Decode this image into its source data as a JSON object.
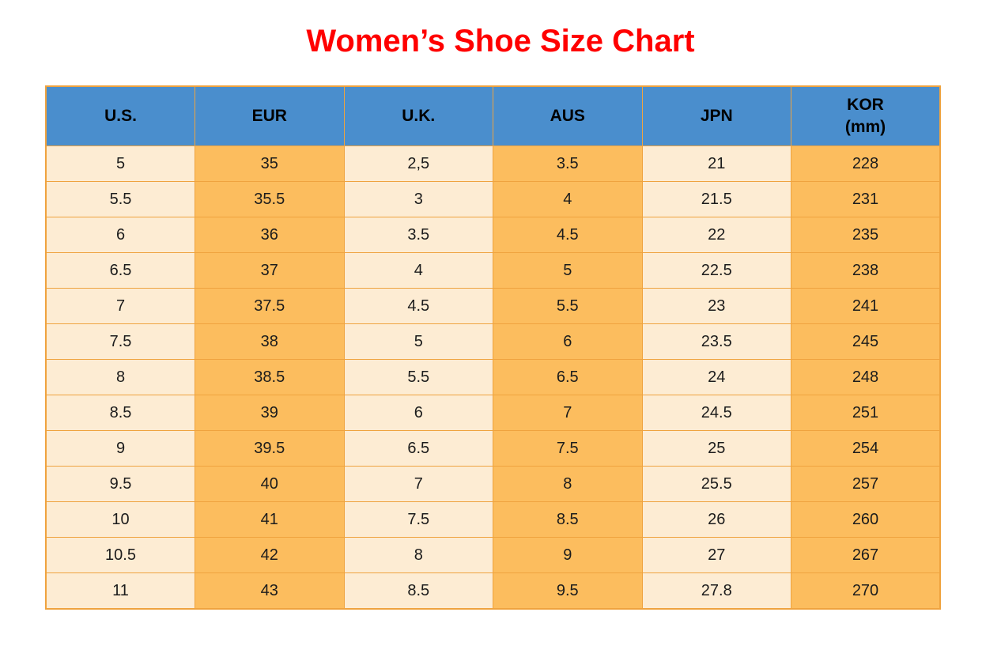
{
  "page": {
    "title": "Women’s Shoe Size Chart"
  },
  "colors": {
    "title_text": "#ff0000",
    "header_bg": "#4a8ecd",
    "header_text": "#000000",
    "cell_text": "#1c1c1c",
    "stripe_cream": "#fdecd3",
    "stripe_orange": "#fcbd5e",
    "grid_border": "#efa33f"
  },
  "chart_data": {
    "type": "table",
    "title": "Women’s Shoe Size Chart",
    "columns": [
      "U.S.",
      "EUR",
      "U.K.",
      "AUS",
      "JPN",
      "KOR\n(mm)"
    ],
    "column_fills": [
      "cream",
      "orange",
      "cream",
      "orange",
      "cream",
      "orange"
    ],
    "rows": [
      [
        "5",
        "35",
        "2,5",
        "3.5",
        "21",
        "228"
      ],
      [
        "5.5",
        "35.5",
        "3",
        "4",
        "21.5",
        "231"
      ],
      [
        "6",
        "36",
        "3.5",
        "4.5",
        "22",
        "235"
      ],
      [
        "6.5",
        "37",
        "4",
        "5",
        "22.5",
        "238"
      ],
      [
        "7",
        "37.5",
        "4.5",
        "5.5",
        "23",
        "241"
      ],
      [
        "7.5",
        "38",
        "5",
        "6",
        "23.5",
        "245"
      ],
      [
        "8",
        "38.5",
        "5.5",
        "6.5",
        "24",
        "248"
      ],
      [
        "8.5",
        "39",
        "6",
        "7",
        "24.5",
        "251"
      ],
      [
        "9",
        "39.5",
        "6.5",
        "7.5",
        "25",
        "254"
      ],
      [
        "9.5",
        "40",
        "7",
        "8",
        "25.5",
        "257"
      ],
      [
        "10",
        "41",
        "7.5",
        "8.5",
        "26",
        "260"
      ],
      [
        "10.5",
        "42",
        "8",
        "9",
        "27",
        "267"
      ],
      [
        "11",
        "43",
        "8.5",
        "9.5",
        "27.8",
        "270"
      ]
    ]
  }
}
